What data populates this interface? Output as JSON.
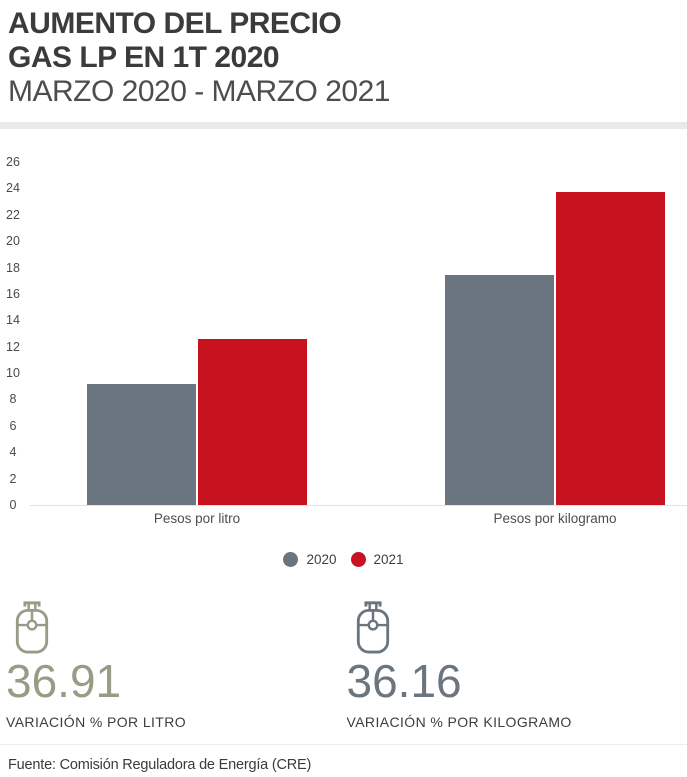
{
  "header": {
    "title_line1": "AUMENTO DEL PRECIO",
    "title_line2": "GAS LP EN 1T 2020",
    "subtitle": "MARZO 2020 - MARZO 2021"
  },
  "chart_data": {
    "type": "bar",
    "categories": [
      "Pesos por litro",
      "Pesos por kilogramo"
    ],
    "series": [
      {
        "name": "2020",
        "color": "#6b7580",
        "values": [
          9.2,
          17.4
        ]
      },
      {
        "name": "2021",
        "color": "#c8121f",
        "values": [
          12.6,
          23.7
        ]
      }
    ],
    "title": "Aumento del precio Gas LP en 1T 2020 (Marzo 2020 - Marzo 2021)",
    "xlabel": "",
    "ylabel": "",
    "ylim": [
      0,
      26
    ],
    "ytick_step": 2,
    "grid": false,
    "legend_position": "bottom"
  },
  "stats": [
    {
      "value": "36.91",
      "label": "VARIACIÓN % POR LITRO",
      "color": "#9b9a87"
    },
    {
      "value": "36.16",
      "label": "VARIACIÓN % POR KILOGRAMO",
      "color": "#6b7580"
    }
  ],
  "footer": {
    "source": "Fuente: Comisión Reguladora de Energía (CRE)"
  }
}
